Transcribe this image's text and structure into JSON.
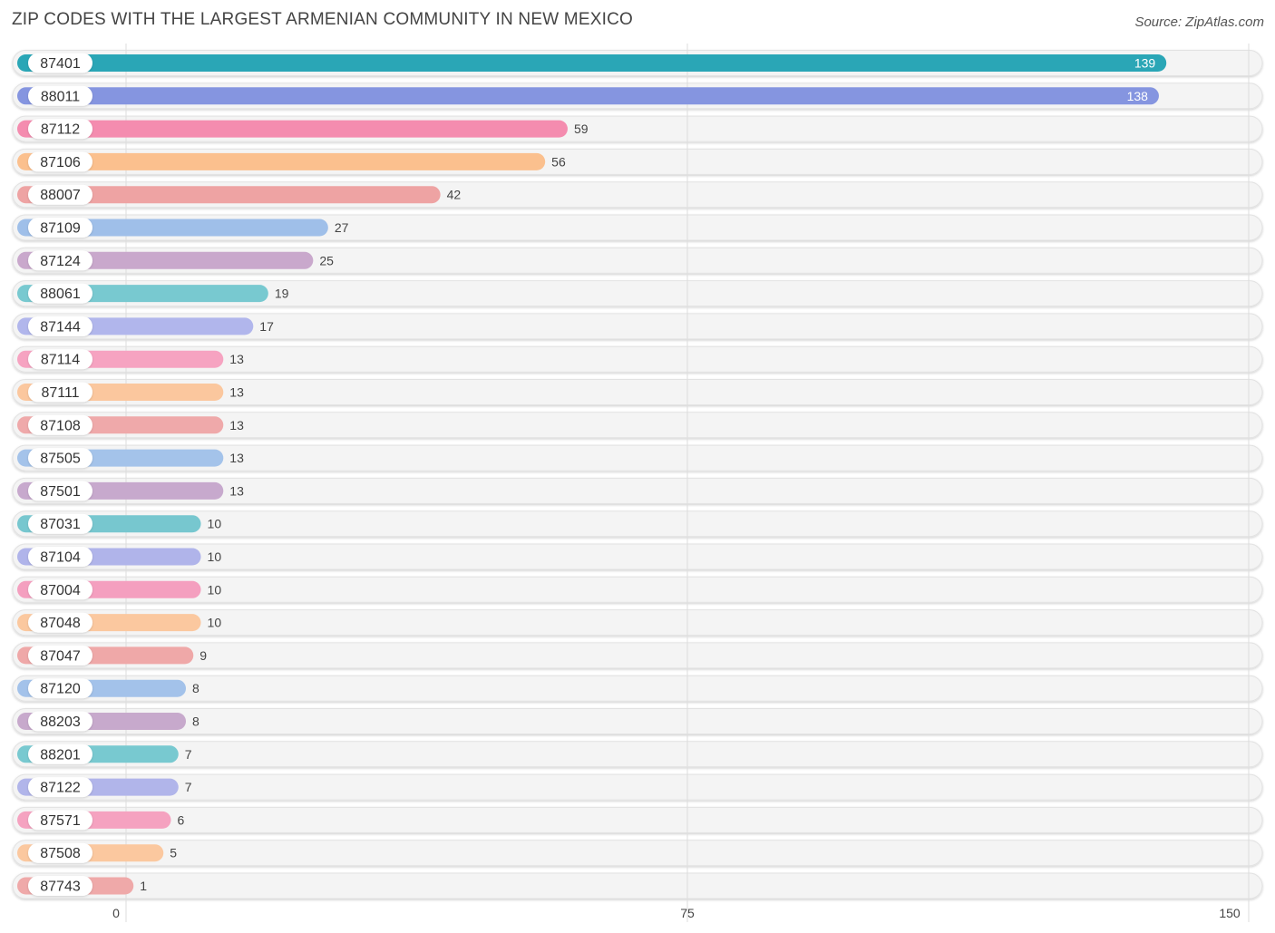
{
  "title": "ZIP CODES WITH THE LARGEST ARMENIAN COMMUNITY IN NEW MEXICO",
  "source": "Source: ZipAtlas.com",
  "chart_data": {
    "type": "bar",
    "orientation": "horizontal",
    "title": "ZIP CODES WITH THE LARGEST ARMENIAN COMMUNITY IN NEW MEXICO",
    "xlabel": "",
    "ylabel": "",
    "xlim": [
      0,
      150
    ],
    "ticks": [
      0,
      75,
      150
    ],
    "tick_labels": [
      "0",
      "75",
      "150"
    ],
    "grid": true,
    "categories": [
      "87401",
      "88011",
      "87112",
      "87106",
      "88007",
      "87109",
      "87124",
      "88061",
      "87144",
      "87114",
      "87111",
      "87108",
      "87505",
      "87501",
      "87031",
      "87104",
      "87004",
      "87048",
      "87047",
      "87120",
      "88203",
      "88201",
      "87122",
      "87571",
      "87508",
      "87743"
    ],
    "values": [
      139,
      138,
      59,
      56,
      42,
      27,
      25,
      19,
      17,
      13,
      13,
      13,
      13,
      13,
      10,
      10,
      10,
      10,
      9,
      8,
      8,
      7,
      7,
      6,
      5,
      1
    ],
    "value_labels": [
      "139",
      "138",
      "59",
      "56",
      "42",
      "27",
      "25",
      "19",
      "17",
      "13",
      "13",
      "13",
      "13",
      "13",
      "10",
      "10",
      "10",
      "10",
      "9",
      "8",
      "8",
      "7",
      "7",
      "6",
      "5",
      "1"
    ],
    "colors": [
      "#2aa6b6",
      "#8595e0",
      "#f48caf",
      "#fbc08e",
      "#eea3a3",
      "#9fbfe9",
      "#c9a8cc",
      "#78c9d0",
      "#b1b6ec",
      "#f6a3c1",
      "#fbc79e",
      "#efa9aa",
      "#a4c3ea",
      "#c7a9cd",
      "#77c7cf",
      "#b0b4ea",
      "#f49fbf",
      "#fbc89f",
      "#efa8a8",
      "#a3c2ea",
      "#c7a9cc",
      "#78c9d0",
      "#b1b5ea",
      "#f5a2c0",
      "#fbc89f",
      "#efa9a9"
    ]
  }
}
